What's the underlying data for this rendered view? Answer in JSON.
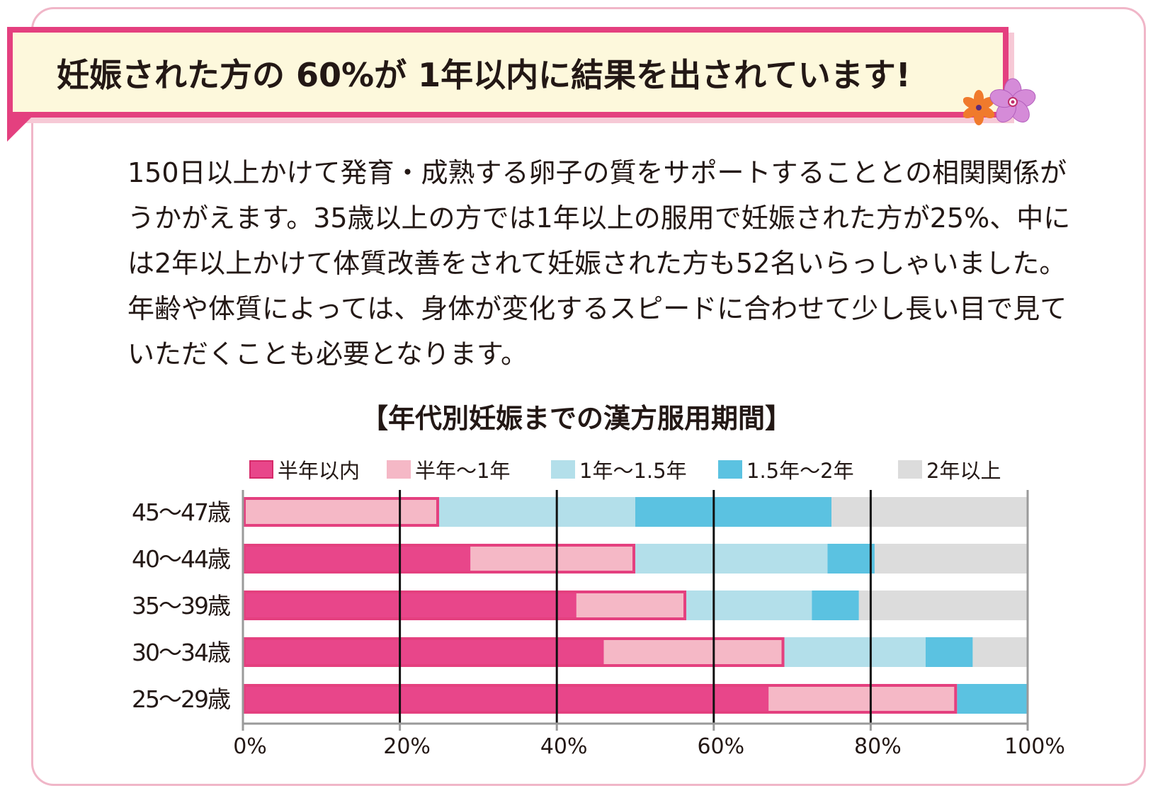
{
  "header": {
    "title": "妊娠された方の 60%が 1年以内に結果を出されています!"
  },
  "body": {
    "lines": [
      "150日以上かけて発育・成熟する卵子の質をサポートすることとの相関関係が",
      "うかがえます。35歳以上の方では1年以上の服用で妊娠された方が25%、中に",
      "は2年以上かけて体質改善をされて妊娠された方も52名いらっしゃいました。",
      "年齢や体質によっては、身体が変化するスピードに合わせて少し長い目で見て",
      "いただくことも必要となります。"
    ]
  },
  "decor": {
    "flower_icons": [
      "orange-flower-icon",
      "purple-flower-icon"
    ]
  },
  "colors": {
    "accent": "#e4407f",
    "banner_bg": "#fdf8dc",
    "series": [
      "#e8468a",
      "#f5b8c6",
      "#b3dfea",
      "#5bc2e1",
      "#dcdcdc"
    ]
  },
  "chart_data": {
    "type": "bar",
    "orientation": "horizontal",
    "stacked": true,
    "title": "【年代別妊娠までの漢方服用期間】",
    "categories": [
      "45〜47歳",
      "40〜44歳",
      "35〜39歳",
      "30〜34歳",
      "25〜29歳"
    ],
    "series": [
      {
        "name": "半年以内",
        "values": [
          0,
          29,
          42.5,
          46,
          67
        ]
      },
      {
        "name": "半年〜1年",
        "values": [
          25,
          21,
          14,
          23,
          24
        ]
      },
      {
        "name": "1年〜1.5年",
        "values": [
          25,
          24.5,
          16,
          18,
          0
        ]
      },
      {
        "name": "1.5年〜2年",
        "values": [
          25,
          6,
          6,
          6,
          9
        ]
      },
      {
        "name": "2年以上",
        "values": [
          25,
          19.5,
          21.5,
          7,
          0
        ]
      }
    ],
    "xlim": [
      0,
      100
    ],
    "xticks": [
      "0%",
      "20%",
      "40%",
      "60%",
      "80%",
      "100%"
    ],
    "grid": true,
    "legend_position": "top",
    "within_one_year_outline": true
  }
}
